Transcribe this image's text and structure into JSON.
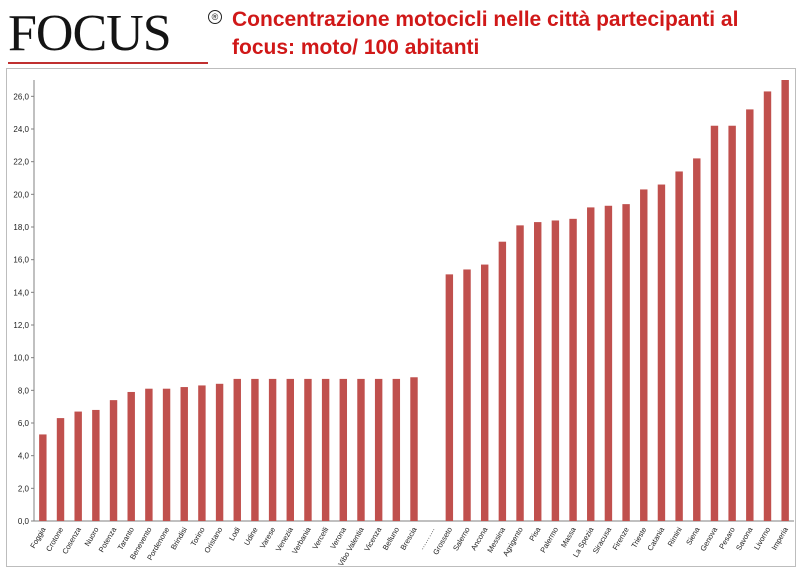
{
  "header": {
    "logo_text": "FOCUS",
    "logo_mark": "®",
    "title": "Concentrazione motocicli nelle città partecipanti al focus: moto/ 100 abitanti"
  },
  "colors": {
    "bar": "#c0504d",
    "title": "#d01818",
    "axis": "#808080"
  },
  "chart_data": {
    "type": "bar",
    "title": "Concentrazione motocicli nelle città partecipanti al focus: moto/ 100 abitanti",
    "xlabel": "",
    "ylabel": "",
    "ylim": [
      0,
      27
    ],
    "yticks": [
      "0,0",
      "2,0",
      "4,0",
      "6,0",
      "8,0",
      "10,0",
      "12,0",
      "14,0",
      "16,0",
      "18,0",
      "20,0",
      "22,0",
      "24,0",
      "26,0"
    ],
    "grid": false,
    "categories": [
      "Foggia",
      "Crotone",
      "Cosenza",
      "Nuoro",
      "Potenza",
      "Taranto",
      "Benevento",
      "Pordenone",
      "Brindisi",
      "Torino",
      "Oristano",
      "Lodi",
      "Udine",
      "Varese",
      "Venezia",
      "Verbania",
      "Vercelli",
      "Verona",
      "Vibo Valentia",
      "Vicenza",
      "Belluno",
      "Brescia",
      "……….",
      "Grosseto",
      "Salerno",
      "Ancona",
      "Messina",
      "Agrigento",
      "Pisa",
      "Palermo",
      "Massa",
      "La Spezia",
      "Siracusa",
      "Firenze",
      "Trieste",
      "Catania",
      "Rimini",
      "Siena",
      "Genova",
      "Pesaro",
      "Savona",
      "Livorno",
      "Imperia"
    ],
    "values": [
      5.3,
      6.3,
      6.7,
      6.8,
      7.4,
      7.9,
      8.1,
      8.1,
      8.2,
      8.3,
      8.4,
      8.7,
      8.7,
      8.7,
      8.7,
      8.7,
      8.7,
      8.7,
      8.7,
      8.7,
      8.7,
      8.8,
      null,
      15.1,
      15.4,
      15.7,
      17.1,
      18.1,
      18.3,
      18.4,
      18.5,
      19.2,
      19.3,
      19.4,
      20.3,
      20.6,
      21.4,
      22.2,
      24.2,
      24.2,
      25.2,
      26.3,
      27.0
    ]
  }
}
